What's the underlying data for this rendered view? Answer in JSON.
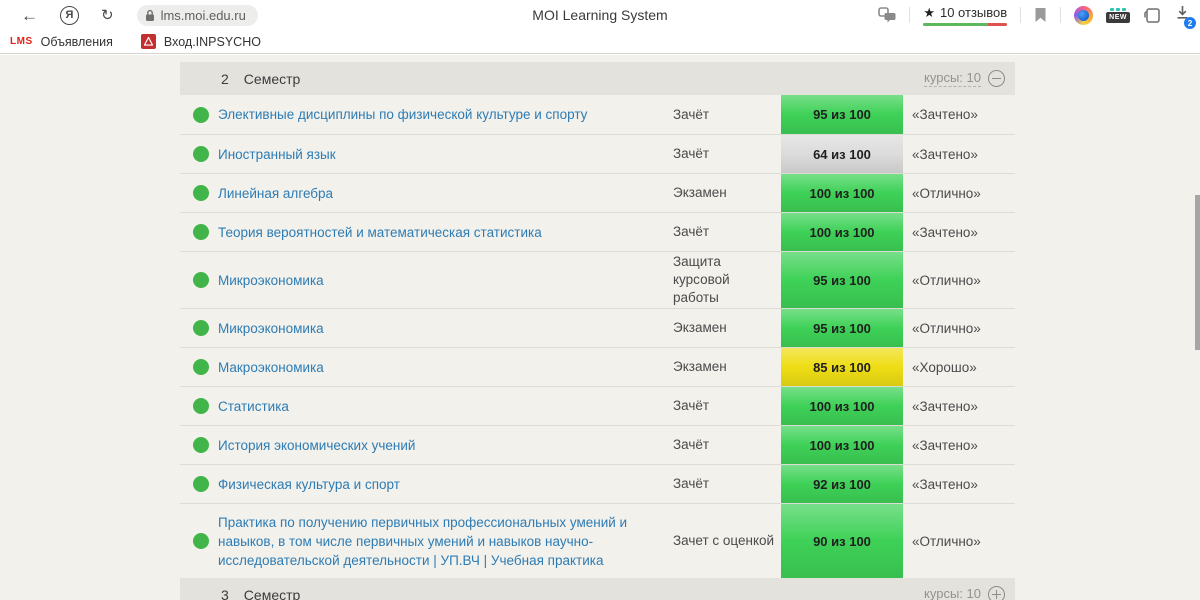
{
  "browser": {
    "yandex_logo": "Я",
    "url": "lms.moi.edu.ru",
    "page_title": "MOI Learning System",
    "reviews": {
      "star": "★",
      "label": "10 отзывов"
    },
    "new_badge": "NEW",
    "download_count": "2"
  },
  "bookmarks_bar": {
    "items": [
      {
        "icon_text": "LMS",
        "label": "Объявления"
      },
      {
        "icon_text": "",
        "label": "Вход.INPSYCHO"
      }
    ]
  },
  "semester_header": {
    "number": "2",
    "title": "Семестр",
    "courses_label": "курсы: 10"
  },
  "semester_footer": {
    "number": "3",
    "title": "Семестр",
    "courses_label": "курсы: 10"
  },
  "grades_table": {
    "rows": [
      {
        "course": "Элективные дисциплины по физической культуре и спорту",
        "type": "Зачёт",
        "score": "95 из 100",
        "score_color": "green",
        "grade": "«Зачтено»",
        "size": "normal"
      },
      {
        "course": "Иностранный язык",
        "type": "Зачёт",
        "score": "64 из 100",
        "score_color": "gray",
        "grade": "«Зачтено»",
        "size": "normal"
      },
      {
        "course": "Линейная алгебра",
        "type": "Экзамен",
        "score": "100 из 100",
        "score_color": "green",
        "grade": "«Отлично»",
        "size": "normal"
      },
      {
        "course": "Теория вероятностей и математическая статистика",
        "type": "Зачёт",
        "score": "100 из 100",
        "score_color": "green",
        "grade": "«Зачтено»",
        "size": "normal"
      },
      {
        "course": "Микроэкономика",
        "type": "Защита курсовой работы",
        "score": "95 из 100",
        "score_color": "green",
        "grade": "«Отлично»",
        "size": "tall"
      },
      {
        "course": "Микроэкономика",
        "type": "Экзамен",
        "score": "95 из 100",
        "score_color": "green",
        "grade": "«Отлично»",
        "size": "normal"
      },
      {
        "course": "Макроэкономика",
        "type": "Экзамен",
        "score": "85 из 100",
        "score_color": "yellow",
        "grade": "«Хорошо»",
        "size": "normal"
      },
      {
        "course": "Статистика",
        "type": "Зачёт",
        "score": "100 из 100",
        "score_color": "green",
        "grade": "«Зачтено»",
        "size": "normal"
      },
      {
        "course": "История экономических учений",
        "type": "Зачёт",
        "score": "100 из 100",
        "score_color": "green",
        "grade": "«Зачтено»",
        "size": "normal"
      },
      {
        "course": "Физическая культура и спорт",
        "type": "Зачёт",
        "score": "92 из 100",
        "score_color": "green",
        "grade": "«Зачтено»",
        "size": "normal"
      },
      {
        "course": "Практика по получению первичных профессиональных умений и навыков, в том числе первичных умений и навыков научно-исследовательской деятельности | УП.ВЧ | Учебная практика",
        "type": "Зачет с оценкой",
        "score": "90 из 100",
        "score_color": "green",
        "grade": "«Отлично»",
        "size": "xtall"
      }
    ]
  },
  "colors": {
    "score_green": "#3ed157",
    "score_gray": "#dcdcdc",
    "score_yellow": "#eedd14",
    "dot_green": "#42b54a",
    "link_blue": "#2e7cb4",
    "header_bar": "#e3e2dd",
    "page_bg": "#f2f1ec"
  }
}
